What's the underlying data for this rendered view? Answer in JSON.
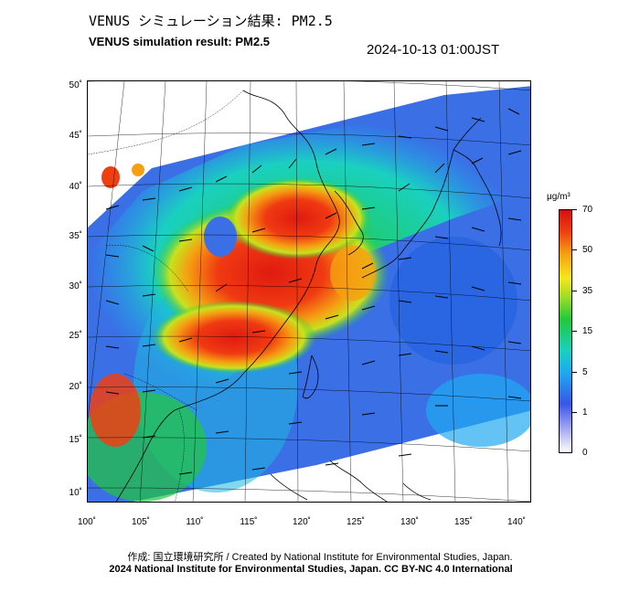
{
  "header": {
    "title_jp": "VENUS シミュレーション結果: PM2.5",
    "title_en": "VENUS simulation result: PM2.5",
    "timestamp": "2024-10-13 01:00JST"
  },
  "map": {
    "lat_labels": [
      "50˚",
      "45˚",
      "40˚",
      "35˚",
      "30˚",
      "25˚",
      "20˚",
      "15˚",
      "10˚"
    ],
    "lon_labels": [
      "100˚",
      "105˚",
      "110˚",
      "115˚",
      "120˚",
      "125˚",
      "130˚",
      "135˚",
      "140˚"
    ]
  },
  "colorbar": {
    "unit": "μg/m³",
    "labels": [
      "70",
      "50",
      "35",
      "15",
      "5",
      "1",
      "0"
    ]
  },
  "credits": {
    "line1": "作成: 国立環境研究所 / Created by National Institute for Environmental Studies, Japan.",
    "line2": "2024 National Institute for Environmental Studies, Japan. CC BY-NC 4.0 International"
  }
}
